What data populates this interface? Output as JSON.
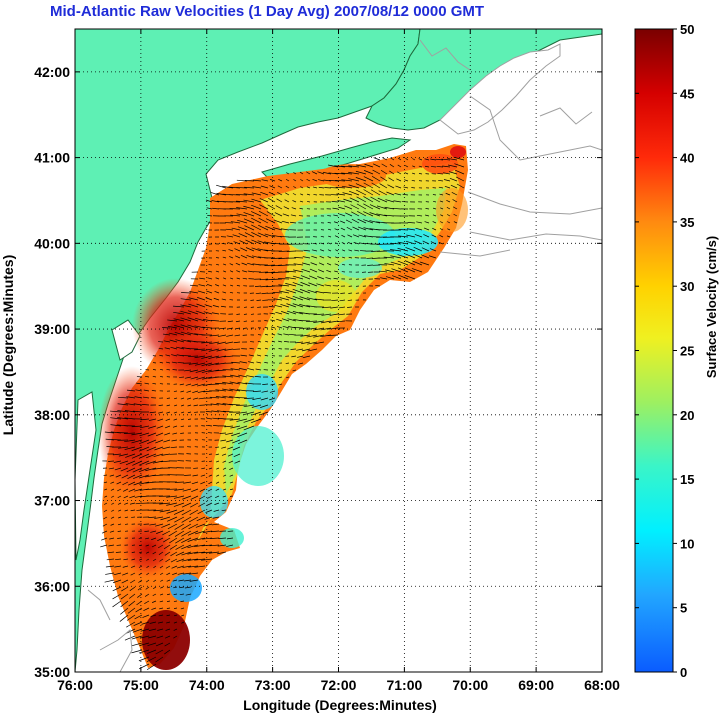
{
  "title": "Mid-Atlantic Raw Velocities (1 Day Avg) 2007/08/12 0000 GMT",
  "map": {
    "xlabel": "Longitude (Degrees:Minutes)",
    "ylabel": "Latitude (Degrees:Minutes)",
    "lon_range": [
      -76,
      -68
    ],
    "lat_range": [
      35,
      42.5
    ],
    "x_ticks": [
      {
        "lon": -76,
        "label": "76:00"
      },
      {
        "lon": -75,
        "label": "75:00"
      },
      {
        "lon": -74,
        "label": "74:00"
      },
      {
        "lon": -73,
        "label": "73:00"
      },
      {
        "lon": -72,
        "label": "72:00"
      },
      {
        "lon": -71,
        "label": "71:00"
      },
      {
        "lon": -70,
        "label": "70:00"
      },
      {
        "lon": -69,
        "label": "69:00"
      },
      {
        "lon": -68,
        "label": "68:00"
      }
    ],
    "y_ticks": [
      {
        "lat": 35,
        "label": "35:00"
      },
      {
        "lat": 36,
        "label": "36:00"
      },
      {
        "lat": 37,
        "label": "37:00"
      },
      {
        "lat": 38,
        "label": "38:00"
      },
      {
        "lat": 39,
        "label": "39:00"
      },
      {
        "lat": 40,
        "label": "40:00"
      },
      {
        "lat": 41,
        "label": "41:00"
      },
      {
        "lat": 42,
        "label": "42:00"
      }
    ],
    "grid": "dotted",
    "land_color": "#5ef0b4",
    "isobath_color": "#a0a0a0"
  },
  "colorbar": {
    "label": "Surface Velocity (cm/s)",
    "min": 0,
    "max": 50,
    "ticks": [
      {
        "value": 0,
        "label": "0"
      },
      {
        "value": 5,
        "label": "5"
      },
      {
        "value": 10,
        "label": "10"
      },
      {
        "value": 15,
        "label": "15"
      },
      {
        "value": 20,
        "label": "20"
      },
      {
        "value": 25,
        "label": "25"
      },
      {
        "value": 30,
        "label": "30"
      },
      {
        "value": 35,
        "label": "35"
      },
      {
        "value": 40,
        "label": "40"
      },
      {
        "value": 45,
        "label": "45"
      },
      {
        "value": 50,
        "label": "50"
      }
    ],
    "colormap": "jet"
  }
}
